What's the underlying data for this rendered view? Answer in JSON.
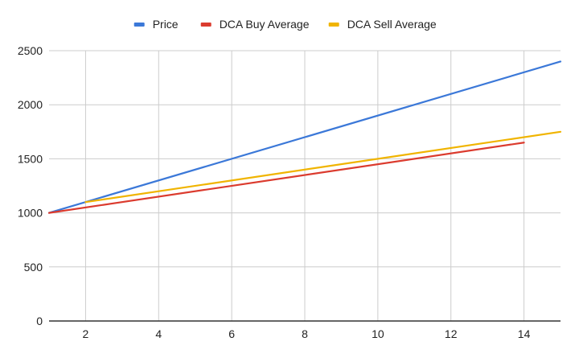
{
  "chart_data": {
    "type": "line",
    "title": "",
    "xlabel": "",
    "ylabel": "",
    "xlim": [
      1,
      15
    ],
    "ylim": [
      0,
      2500
    ],
    "x_ticks": [
      2,
      4,
      6,
      8,
      10,
      12,
      14
    ],
    "y_ticks": [
      0,
      500,
      1000,
      1500,
      2000,
      2500
    ],
    "grid": true,
    "legend_position": "top",
    "series": [
      {
        "name": "Price",
        "color": "#3b78d8",
        "x": [
          1,
          15
        ],
        "y": [
          1000,
          2400
        ]
      },
      {
        "name": "DCA Buy Average",
        "color": "#db3b2e",
        "x": [
          1,
          14
        ],
        "y": [
          1000,
          1650
        ]
      },
      {
        "name": "DCA Sell Average",
        "color": "#f0b400",
        "x": [
          2,
          15
        ],
        "y": [
          1100,
          1750
        ]
      }
    ]
  }
}
